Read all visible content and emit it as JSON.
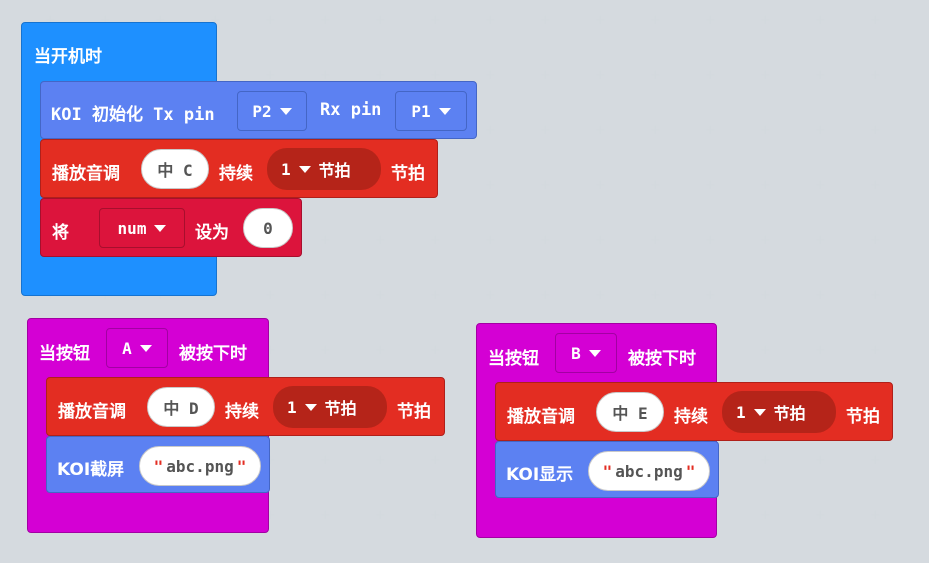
{
  "colors": {
    "workspace_bg": "#e8ecef",
    "basic_blue": "#1e90ff",
    "koi_blue": "#5c81f2",
    "music_red": "#e32d22",
    "variable_crimson": "#dc143c",
    "input_magenta": "#d400d4"
  },
  "on_start": {
    "hat_label": "当开机时",
    "koi_init": {
      "label": "KOI 初始化 Tx pin",
      "tx_pin": "P2",
      "rx_label": "Rx pin",
      "rx_pin": "P1"
    },
    "play_tone": {
      "label": "播放音调",
      "note": "中 C",
      "duration_label": "持续",
      "beats_value": "1",
      "beats_unit": "节拍",
      "trailing": "节拍"
    },
    "set_var": {
      "label": "将",
      "variable": "num",
      "set_label": "设为",
      "value": "0"
    }
  },
  "on_button_a": {
    "label_before": "当按钮",
    "button": "A",
    "label_after": "被按下时",
    "play_tone": {
      "label": "播放音调",
      "note": "中 D",
      "duration_label": "持续",
      "beats_value": "1",
      "beats_unit": "节拍",
      "trailing": "节拍"
    },
    "koi_action": {
      "label": "KOI截屏",
      "text_value": "abc.png"
    }
  },
  "on_button_b": {
    "label_before": "当按钮",
    "button": "B",
    "label_after": "被按下时",
    "play_tone": {
      "label": "播放音调",
      "note": "中 E",
      "duration_label": "持续",
      "beats_value": "1",
      "beats_unit": "节拍",
      "trailing": "节拍"
    },
    "koi_action": {
      "label": "KOI显示",
      "text_value": "abc.png"
    }
  },
  "icons": {
    "dropdown": "caret-down-icon",
    "grid": "plus-icon"
  }
}
